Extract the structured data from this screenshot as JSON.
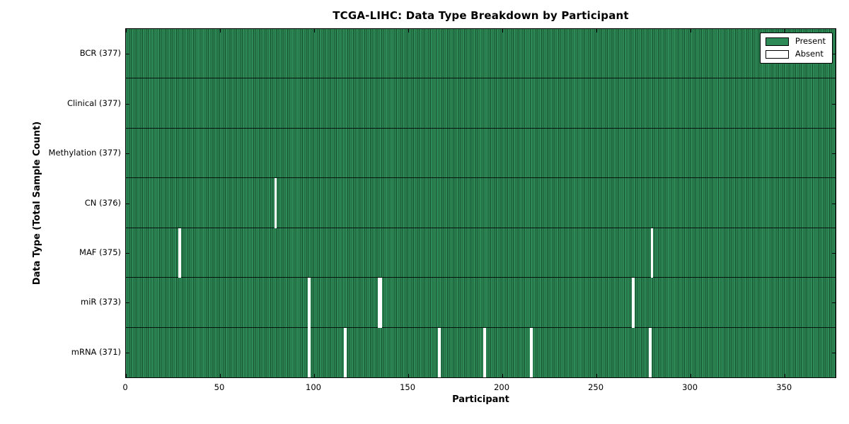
{
  "colors": {
    "present": "#2e8b57",
    "present_stripe": "#16502e",
    "absent": "#ffffff",
    "frame": "#000000",
    "row_separator": "rgba(0,0,0,0.85)",
    "background": "#ffffff"
  },
  "chart_data": {
    "type": "heatmap",
    "title": "TCGA-LIHC: Data Type Breakdown by Participant",
    "xlabel": "Participant",
    "ylabel": "Data Type (Total Sample Count)",
    "n_participants": 377,
    "xlim": [
      0,
      377
    ],
    "x_ticks": [
      0,
      50,
      100,
      150,
      200,
      250,
      300,
      350
    ],
    "grid": false,
    "legend_position": "upper right",
    "legend_labels": {
      "present": "Present",
      "absent": "Absent"
    },
    "rows": [
      {
        "name": "BCR",
        "label": "BCR (377)",
        "total_present": 377,
        "absent_participants": []
      },
      {
        "name": "Clinical",
        "label": "Clinical (377)",
        "total_present": 377,
        "absent_participants": []
      },
      {
        "name": "Methylation",
        "label": "Methylation (377)",
        "total_present": 377,
        "absent_participants": []
      },
      {
        "name": "CN",
        "label": "CN (376)",
        "total_present": 376,
        "absent_participants": [
          79
        ]
      },
      {
        "name": "MAF",
        "label": "MAF (375)",
        "total_present": 375,
        "absent_participants": [
          28,
          279
        ]
      },
      {
        "name": "miR",
        "label": "miR (373)",
        "total_present": 373,
        "absent_participants": [
          97,
          134,
          135,
          269
        ]
      },
      {
        "name": "mRNA",
        "label": "mRNA (371)",
        "total_present": 371,
        "absent_participants": [
          97,
          116,
          166,
          190,
          215,
          278
        ]
      }
    ]
  }
}
